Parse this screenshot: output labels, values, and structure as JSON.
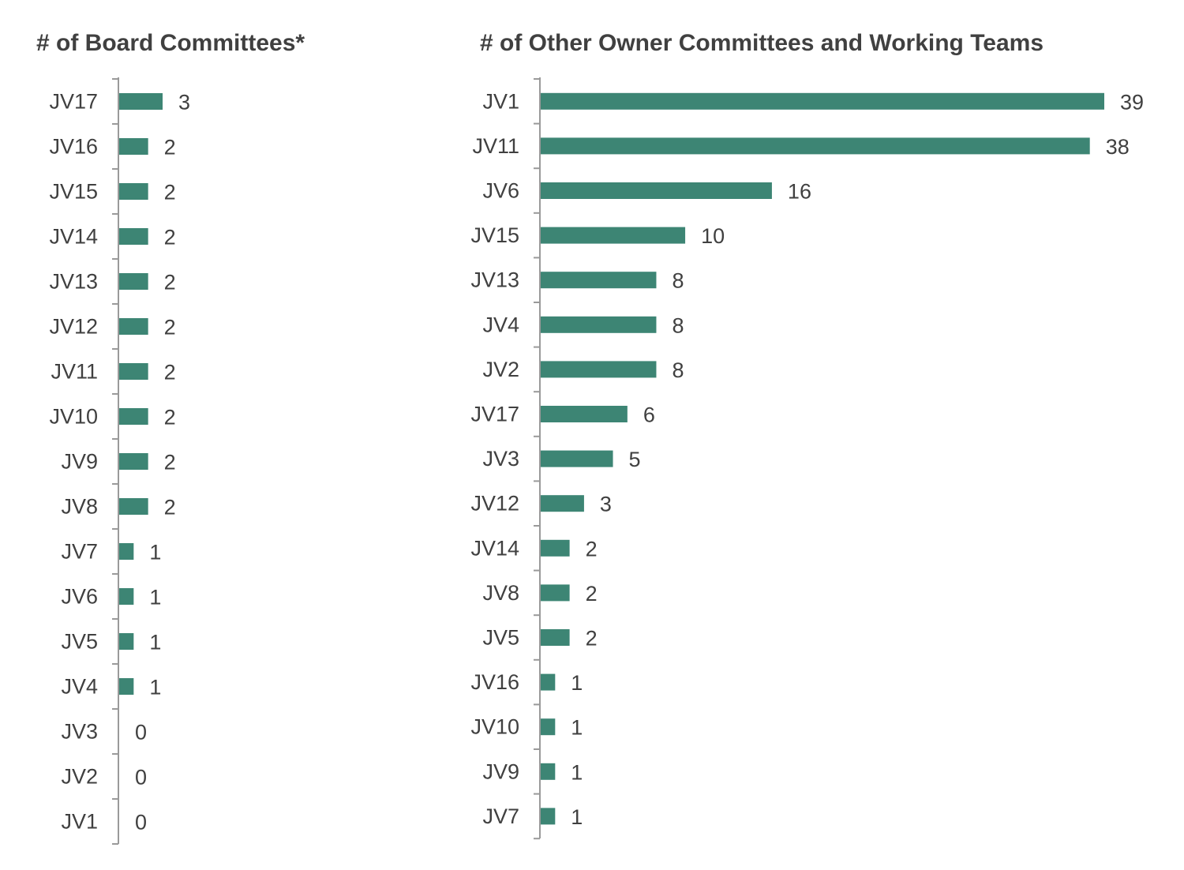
{
  "colors": {
    "bar": "#3d8574",
    "text": "#404040",
    "axis": "#9a9a9a"
  },
  "chart_data": [
    {
      "type": "bar",
      "orientation": "horizontal",
      "title": "# of Board Committees*",
      "categories": [
        "JV17",
        "JV16",
        "JV15",
        "JV14",
        "JV13",
        "JV12",
        "JV11",
        "JV10",
        "JV9",
        "JV8",
        "JV7",
        "JV6",
        "JV5",
        "JV4",
        "JV3",
        "JV2",
        "JV1"
      ],
      "values": [
        3,
        2,
        2,
        2,
        2,
        2,
        2,
        2,
        2,
        2,
        1,
        1,
        1,
        1,
        0,
        0,
        0
      ],
      "xlim": [
        0,
        3
      ],
      "data_labels": true,
      "legend": "none",
      "grid": false
    },
    {
      "type": "bar",
      "orientation": "horizontal",
      "title": "# of Other Owner Committees and Working Teams",
      "categories": [
        "JV1",
        "JV11",
        "JV6",
        "JV15",
        "JV13",
        "JV4",
        "JV2",
        "JV17",
        "JV3",
        "JV12",
        "JV14",
        "JV8",
        "JV5",
        "JV16",
        "JV10",
        "JV9",
        "JV7"
      ],
      "values": [
        39,
        38,
        16,
        10,
        8,
        8,
        8,
        6,
        5,
        3,
        2,
        2,
        2,
        1,
        1,
        1,
        1
      ],
      "xlim": [
        0,
        39
      ],
      "data_labels": true,
      "legend": "none",
      "grid": false
    }
  ]
}
